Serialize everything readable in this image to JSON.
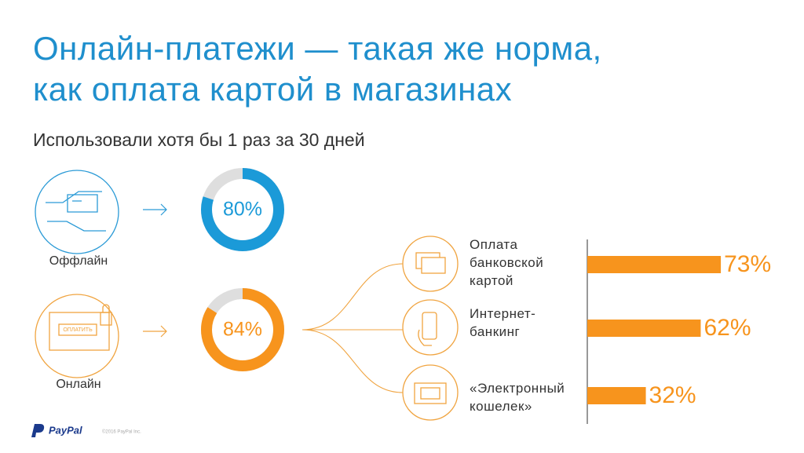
{
  "title": [
    "Онлайн-платежи — такая же норма,",
    "как оплата картой в магазинах"
  ],
  "subtitle": "Использовали хотя бы 1 раз за 30 дней",
  "icon_button": "ОПЛАТИТЬ",
  "footer": {
    "logo": "PayPal",
    "copyright": "©2016 PayPal Inc."
  },
  "chart_data": [
    {
      "type": "donut",
      "label": "Оффлайн",
      "values": [
        80
      ],
      "value_labels": [
        "80%"
      ],
      "ylim": [
        0,
        100
      ],
      "color": "#1b9ad8",
      "rest_color": "#dedede"
    },
    {
      "type": "donut",
      "label": "Онлайн",
      "values": [
        84
      ],
      "value_labels": [
        "84%"
      ],
      "ylim": [
        0,
        100
      ],
      "color": "#f7941d",
      "rest_color": "#dedede"
    },
    {
      "type": "bar",
      "orientation": "horizontal",
      "categories": [
        "Оплата банковской картой",
        "Интернет-банкинг",
        "«Электронный кошелек»"
      ],
      "values": [
        73,
        62,
        32
      ],
      "value_labels": [
        "73%",
        "62%",
        "32%"
      ],
      "xlim": [
        0,
        100
      ],
      "color": "#f7941d"
    }
  ]
}
